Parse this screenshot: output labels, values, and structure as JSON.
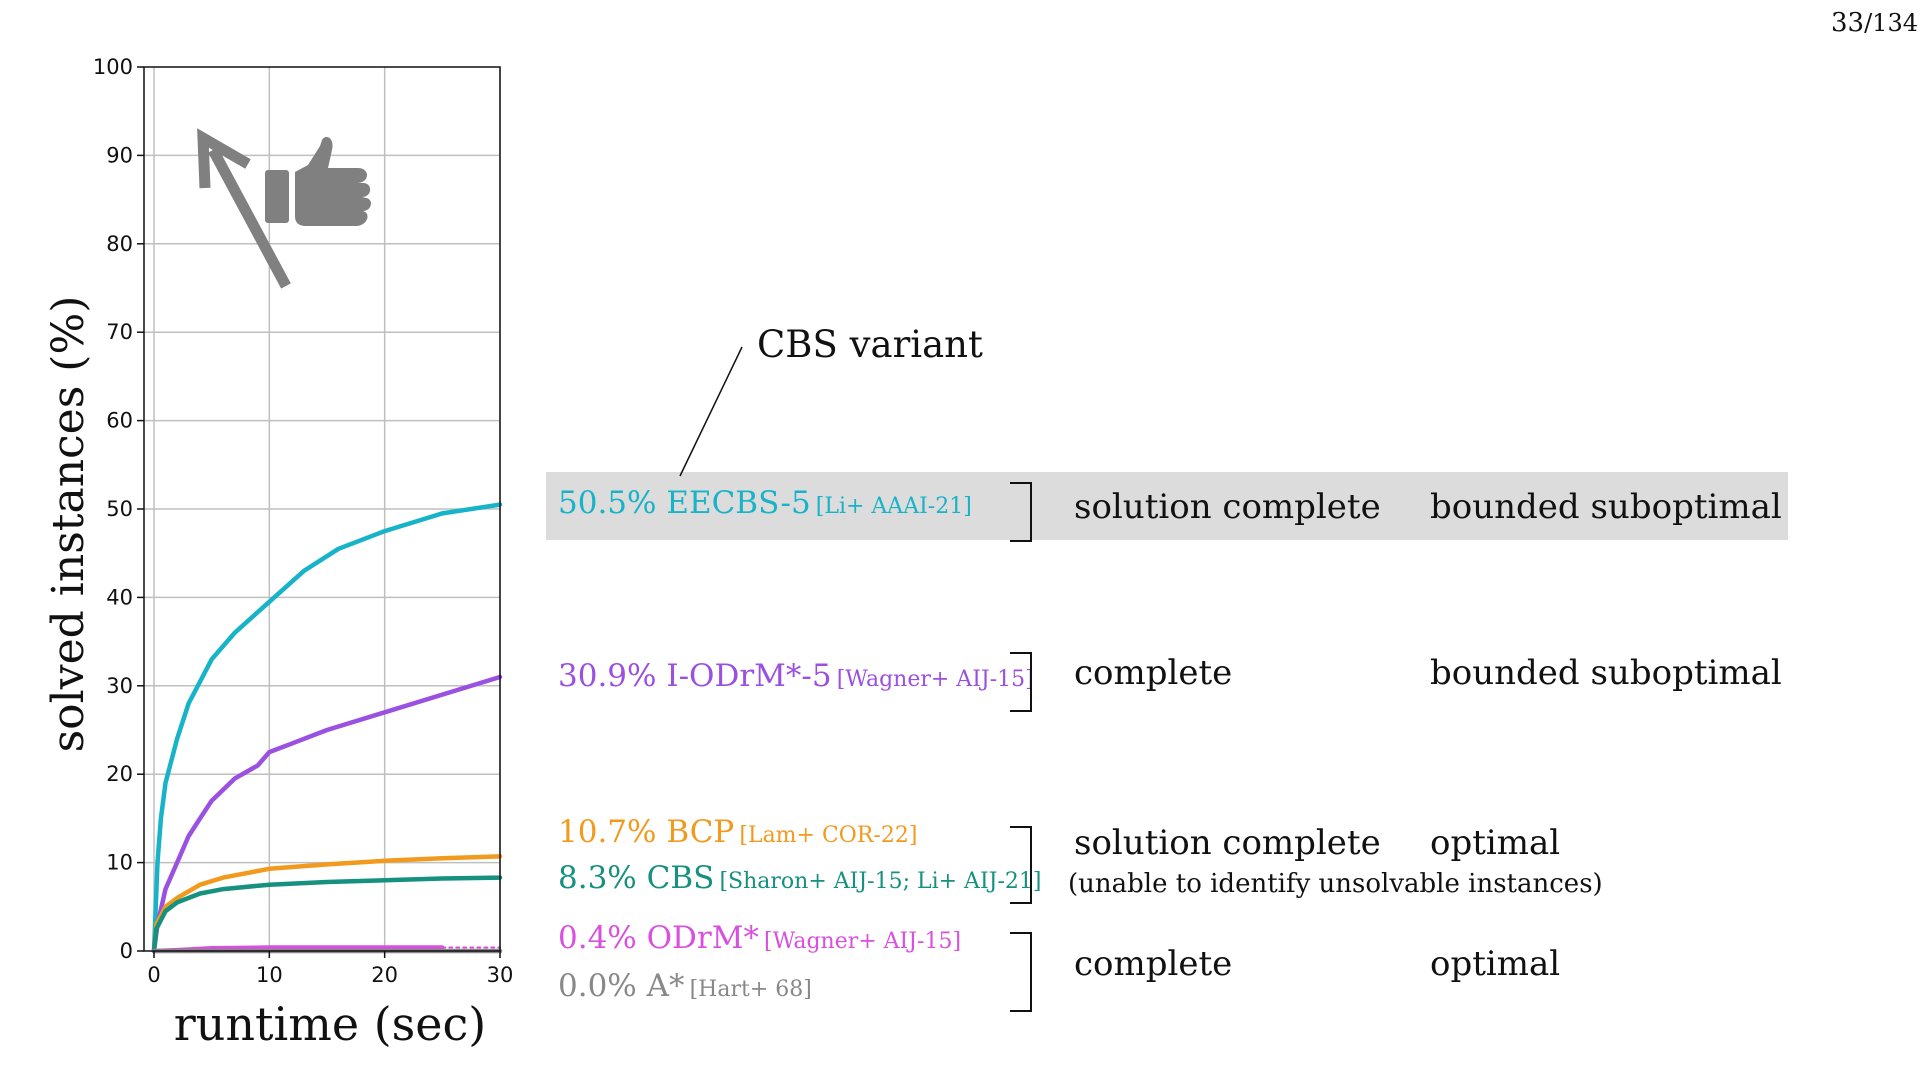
{
  "page": {
    "current": "33",
    "total": "/134"
  },
  "callout": {
    "label": "CBS variant"
  },
  "methods": [
    {
      "id": "eecbs",
      "text": "50.5% EECBS-5",
      "cite": "[Li+ AAAI-21]",
      "color": "#17b3c8",
      "completeness": "solution complete",
      "optimality": "bounded suboptimal",
      "highlighted": true
    },
    {
      "id": "iodrm",
      "text": "30.9% I-ODrM*-5",
      "cite": "[Wagner+ AIJ-15]",
      "color": "#9a50e0",
      "completeness": "complete",
      "optimality": "bounded suboptimal"
    },
    {
      "id": "bcp",
      "text": "10.7% BCP",
      "cite": "[Lam+ COR-22]",
      "color": "#f29a1e"
    },
    {
      "id": "cbs",
      "text": "8.3% CBS",
      "cite": "[Sharon+ AIJ-15; Li+ AIJ-21]",
      "color": "#16907f"
    },
    {
      "id": "odrm",
      "text": "0.4% ODrM*",
      "cite": "[Wagner+ AIJ-15]",
      "color": "#d94fe0"
    },
    {
      "id": "astar",
      "text": "0.0% A*",
      "cite": "[Hart+ 68]",
      "color": "#888888"
    }
  ],
  "groups": {
    "optimal_cbs": {
      "completeness": "solution complete",
      "optimality": "optimal",
      "note": "(unable to identify unsolvable instances)"
    },
    "optimal_complete": {
      "completeness": "complete",
      "optimality": "optimal"
    }
  },
  "icons": {
    "arrow": "up-left-arrow-icon",
    "thumb": "thumbs-up-icon"
  },
  "chart_data": {
    "type": "line",
    "xlabel": "runtime (sec)",
    "ylabel": "solved instances (%)",
    "xlim": [
      0,
      30
    ],
    "ylim": [
      0,
      100
    ],
    "xticks": [
      0,
      10,
      20,
      30
    ],
    "yticks": [
      0,
      10,
      20,
      30,
      40,
      50,
      60,
      70,
      80,
      90,
      100
    ],
    "grid": true,
    "series": [
      {
        "name": "EECBS-5",
        "color": "#17b3c8",
        "x": [
          0,
          0.3,
          0.6,
          1,
          2,
          3,
          5,
          7,
          10,
          13,
          16,
          20,
          25,
          30
        ],
        "y": [
          0,
          10,
          15,
          19,
          24,
          28,
          33,
          36,
          39.5,
          43,
          45.5,
          47.5,
          49.5,
          50.5
        ]
      },
      {
        "name": "I-ODrM*-5",
        "color": "#9a50e0",
        "x": [
          0,
          0.3,
          1,
          2,
          3,
          4,
          5,
          7,
          9,
          10,
          12,
          15,
          20,
          25,
          30
        ],
        "y": [
          0,
          3,
          7,
          10,
          13,
          15,
          17,
          19.5,
          21,
          22.5,
          23.5,
          25,
          27,
          29,
          31
        ]
      },
      {
        "name": "BCP",
        "color": "#f29a1e",
        "x": [
          0,
          0.2,
          1,
          2,
          4,
          6,
          10,
          15,
          20,
          25,
          30
        ],
        "y": [
          0,
          3,
          5,
          6,
          7.5,
          8.3,
          9.3,
          9.8,
          10.2,
          10.5,
          10.7
        ]
      },
      {
        "name": "CBS",
        "color": "#16907f",
        "x": [
          0,
          0.2,
          1,
          2,
          4,
          6,
          10,
          15,
          20,
          25,
          30
        ],
        "y": [
          0,
          2.5,
          4.5,
          5.5,
          6.5,
          7,
          7.5,
          7.8,
          8,
          8.2,
          8.3
        ]
      },
      {
        "name": "ODrM*",
        "color": "#d94fe0",
        "x": [
          0,
          2,
          5,
          10,
          20,
          25
        ],
        "y": [
          0,
          0.1,
          0.3,
          0.4,
          0.4,
          0.4
        ]
      },
      {
        "name": "ODrM* (dotted)",
        "color": "#d94fe0",
        "dashed": true,
        "x": [
          25,
          30
        ],
        "y": [
          0.4,
          0.4
        ]
      },
      {
        "name": "A*",
        "color": "#888888",
        "x": [
          0,
          30
        ],
        "y": [
          0,
          0
        ]
      }
    ]
  }
}
